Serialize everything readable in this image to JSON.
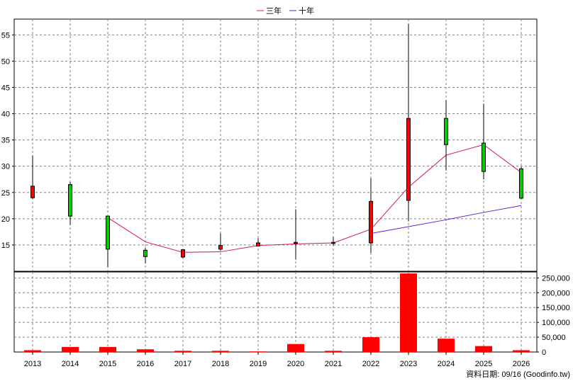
{
  "chart_data": {
    "type": "candlestick",
    "legend": {
      "placement": "top-center",
      "items": [
        {
          "name": "三年",
          "color": "#d4145a"
        },
        {
          "name": "十年",
          "color": "#6a1fd1"
        }
      ]
    },
    "categories": [
      "2013",
      "2014",
      "2015",
      "2016",
      "2017",
      "2018",
      "2019",
      "2020",
      "2021",
      "2022",
      "2023",
      "2024",
      "2025",
      "2026"
    ],
    "price_axis": {
      "ylim": [
        10,
        58
      ],
      "ticks": [
        15,
        20,
        25,
        30,
        35,
        40,
        45,
        50,
        55
      ]
    },
    "candles": [
      {
        "open": 24.0,
        "close": 26.2,
        "high": 32.0,
        "low": 23.8
      },
      {
        "open": 26.5,
        "close": 20.5,
        "high": 27.0,
        "low": 18.8
      },
      {
        "open": 20.5,
        "close": 14.2,
        "high": 20.5,
        "low": 10.8
      },
      {
        "open": 14.0,
        "close": 12.8,
        "high": 14.5,
        "low": 11.5
      },
      {
        "open": 12.7,
        "close": 14.1,
        "high": 14.2,
        "low": 12.5
      },
      {
        "open": 14.2,
        "close": 14.9,
        "high": 17.2,
        "low": 13.9
      },
      {
        "open": 14.8,
        "close": 15.4,
        "high": 16.3,
        "low": 14.8
      },
      {
        "open": 15.5,
        "close": 15.5,
        "high": 21.8,
        "low": 12.2
      },
      {
        "open": 15.3,
        "close": 15.5,
        "high": 16.5,
        "low": 14.9
      },
      {
        "open": 15.4,
        "close": 23.3,
        "high": 27.7,
        "low": 13.5
      },
      {
        "open": 23.5,
        "close": 39.1,
        "high": 57.1,
        "low": 19.5
      },
      {
        "open": 39.1,
        "close": 34.1,
        "high": 42.6,
        "low": 29.2
      },
      {
        "open": 34.4,
        "close": 29.0,
        "high": 41.9,
        "low": 27.5
      },
      {
        "open": 29.5,
        "close": 23.9,
        "high": 29.9,
        "low": 23.8
      }
    ],
    "series": [
      {
        "name": "三年",
        "color": "#d4145a",
        "values": [
          null,
          null,
          20.2,
          15.6,
          13.6,
          13.7,
          14.9,
          15.2,
          15.4,
          18.0,
          26.0,
          32.1,
          34.1,
          28.8
        ]
      },
      {
        "name": "十年",
        "color": "#6a1fd1",
        "values": [
          null,
          null,
          null,
          null,
          null,
          null,
          null,
          null,
          null,
          17.2,
          18.5,
          19.8,
          21.2,
          22.5
        ]
      }
    ],
    "volume_axis": {
      "ylim": [
        0,
        270000
      ],
      "ticks": [
        0,
        50000,
        100000,
        150000,
        200000,
        250000
      ],
      "tick_labels": [
        "0",
        "50,000",
        "100,000",
        "150,000",
        "200,000",
        "250,000"
      ]
    },
    "volume": [
      6000,
      17000,
      17000,
      9000,
      4000,
      4000,
      2000,
      27000,
      4000,
      50000,
      265000,
      45000,
      20000,
      6000
    ],
    "colors": {
      "up": "#ff0000",
      "down": "#00cc00",
      "volume": "#ff0000",
      "grid": "#808080"
    },
    "grid": true,
    "footnote": "資料日期: 09/16  (Goodinfo.tw)"
  }
}
